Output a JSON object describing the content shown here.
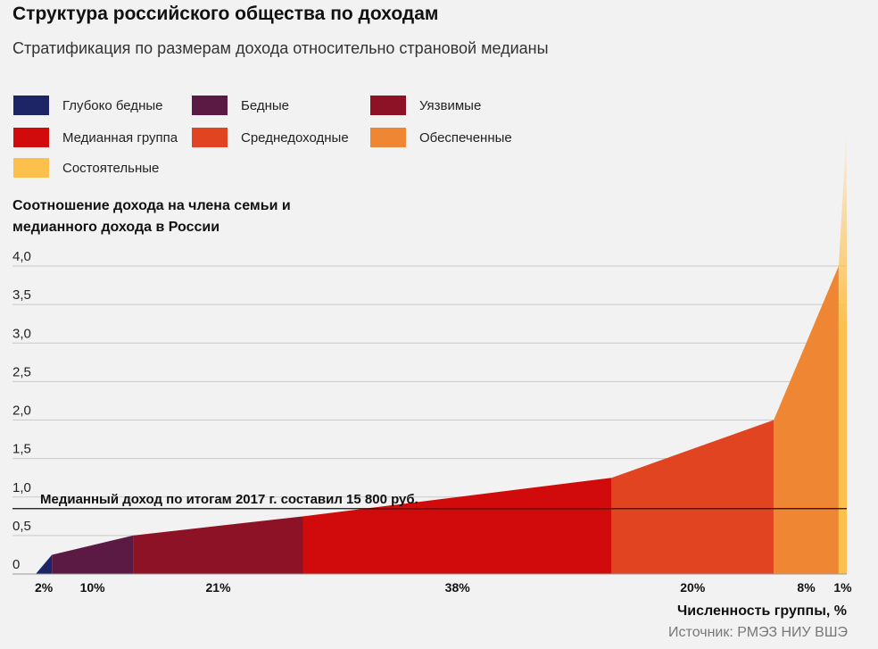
{
  "header": {
    "title": "Структура российского общества по доходам",
    "subtitle": "Стратификация по размерам дохода относительно страновой медианы"
  },
  "legend": [
    {
      "label": "Глубоко бедные",
      "color": "#1d2566"
    },
    {
      "label": "Бедные",
      "color": "#5a1a44"
    },
    {
      "label": "Уязвимые",
      "color": "#8e1226"
    },
    {
      "label": "Медианная группа",
      "color": "#d10a0b"
    },
    {
      "label": "Среднедоходные",
      "color": "#e04421"
    },
    {
      "label": "Обеспеченные",
      "color": "#ef8634"
    },
    {
      "label": "Состоятельные",
      "color": "#fdc04d"
    }
  ],
  "source": "Источник: РМЭЗ НИУ ВШЭ",
  "chart_data": {
    "type": "area",
    "ylabel": "Соотношение дохода на члена семьи и медианного дохода в России",
    "xlabel": "Численность группы, %",
    "ylim": [
      0,
      4.0
    ],
    "yticks": [
      "0",
      "0,5",
      "1,0",
      "1,5",
      "2,0",
      "2,5",
      "3,0",
      "3,5",
      "4,0"
    ],
    "grid": true,
    "median_line": {
      "value": 1.0,
      "label": "Медианный доход по итогам 2017 г. составил 15 800 руб."
    },
    "groups": [
      {
        "name": "Глубоко бедные",
        "share": 2,
        "share_label": "2%",
        "y_start": 0,
        "y_end": 0.25,
        "color": "#1d2566"
      },
      {
        "name": "Бедные",
        "share": 10,
        "share_label": "10%",
        "y_start": 0.25,
        "y_end": 0.5,
        "color": "#5a1a44"
      },
      {
        "name": "Уязвимые",
        "share": 21,
        "share_label": "21%",
        "y_start": 0.5,
        "y_end": 0.75,
        "color": "#8e1226"
      },
      {
        "name": "Медианная группа",
        "share": 38,
        "share_label": "38%",
        "y_start": 0.75,
        "y_end": 1.25,
        "color": "#d10a0b"
      },
      {
        "name": "Среднедоходные",
        "share": 20,
        "share_label": "20%",
        "y_start": 1.25,
        "y_end": 2.0,
        "color": "#e04421"
      },
      {
        "name": "Обеспеченные",
        "share": 8,
        "share_label": "8%",
        "y_start": 2.0,
        "y_end": 4.0,
        "color": "#ef8634"
      },
      {
        "name": "Состоятельные",
        "share": 1,
        "share_label": "1%",
        "y_start": 4.0,
        "y_end": 5.0,
        "color": "#fdc04d"
      }
    ]
  }
}
